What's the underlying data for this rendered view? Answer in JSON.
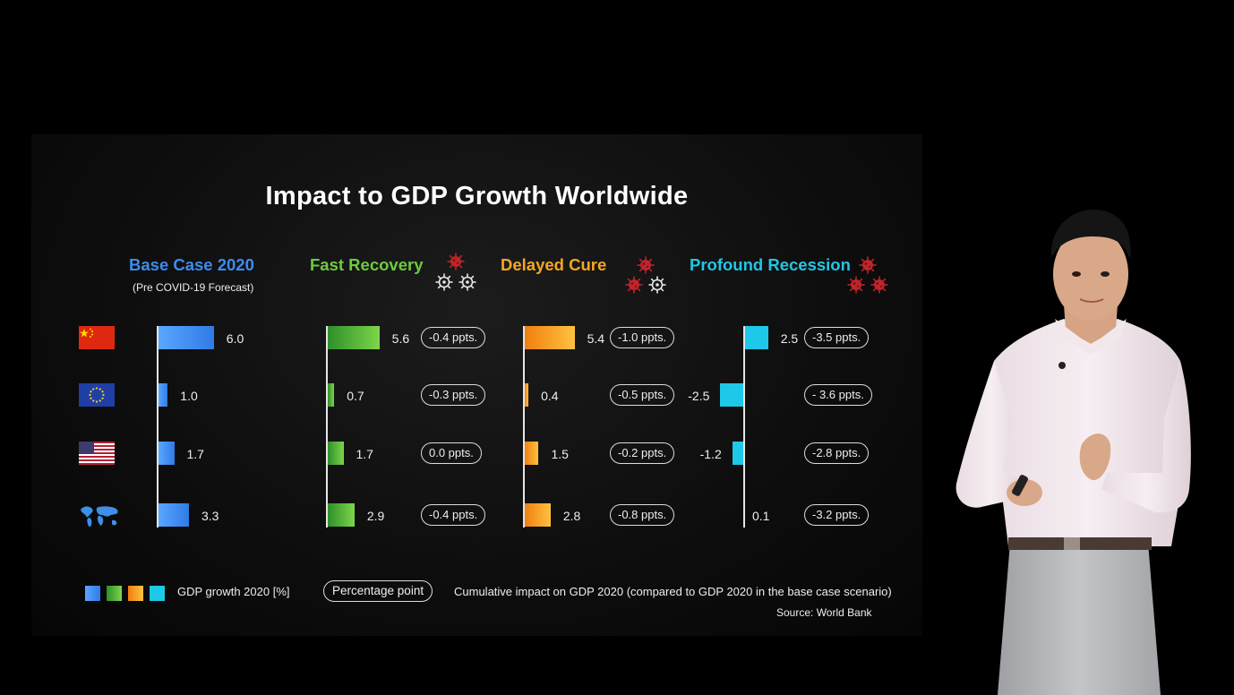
{
  "chart_data": {
    "type": "bar",
    "title": "Impact to GDP Growth Worldwide",
    "countries": [
      "China",
      "EU",
      "USA",
      "World"
    ],
    "unit": "GDP growth 2020 [%]",
    "scenarios": [
      {
        "name": "Base Case 2020",
        "subtitle": "(Pre COVID-19 Forecast)",
        "color": "#3b8cf0",
        "values": [
          6.0,
          1.0,
          1.7,
          3.3
        ],
        "labels": [
          "6.0",
          "1.0",
          "1.7",
          "3.3"
        ],
        "impacts": []
      },
      {
        "name": "Fast Recovery",
        "color": "#5fc33c",
        "values": [
          5.6,
          0.7,
          1.7,
          2.9
        ],
        "labels": [
          "5.6",
          "0.7",
          "1.7",
          "2.9"
        ],
        "impacts": [
          "-0.4 ppts.",
          "-0.3 ppts.",
          "0.0 ppts.",
          "-0.4 ppts."
        ]
      },
      {
        "name": "Delayed Cure",
        "color": "#f5a623",
        "values": [
          5.4,
          0.4,
          1.5,
          2.8
        ],
        "labels": [
          "5.4",
          "0.4",
          "1.5",
          "2.8"
        ],
        "impacts": [
          "-1.0 ppts.",
          "-0.5 ppts.",
          "-0.2 ppts.",
          "-0.8 ppts."
        ]
      },
      {
        "name": "Profound Recession",
        "color": "#1ec8e8",
        "values": [
          2.5,
          -2.5,
          -1.2,
          0.1
        ],
        "labels": [
          "2.5",
          "-2.5",
          "-1.2",
          "0.1"
        ],
        "impacts": [
          "-3.5 ppts.",
          "- 3.6 ppts.",
          "-2.8 ppts.",
          "-3.2 ppts."
        ]
      }
    ]
  },
  "legend": {
    "gdp_label": "GDP growth 2020 [%]",
    "pill_label": "Percentage point",
    "cumulative_label": "Cumulative impact on GDP 2020 (compared to GDP 2020 in the base case scenario)",
    "source": "Source: World Bank"
  },
  "icons": {
    "flags": [
      "china-flag-icon",
      "eu-flag-icon",
      "usa-flag-icon",
      "world-map-icon"
    ],
    "virus": "virus-icon"
  }
}
